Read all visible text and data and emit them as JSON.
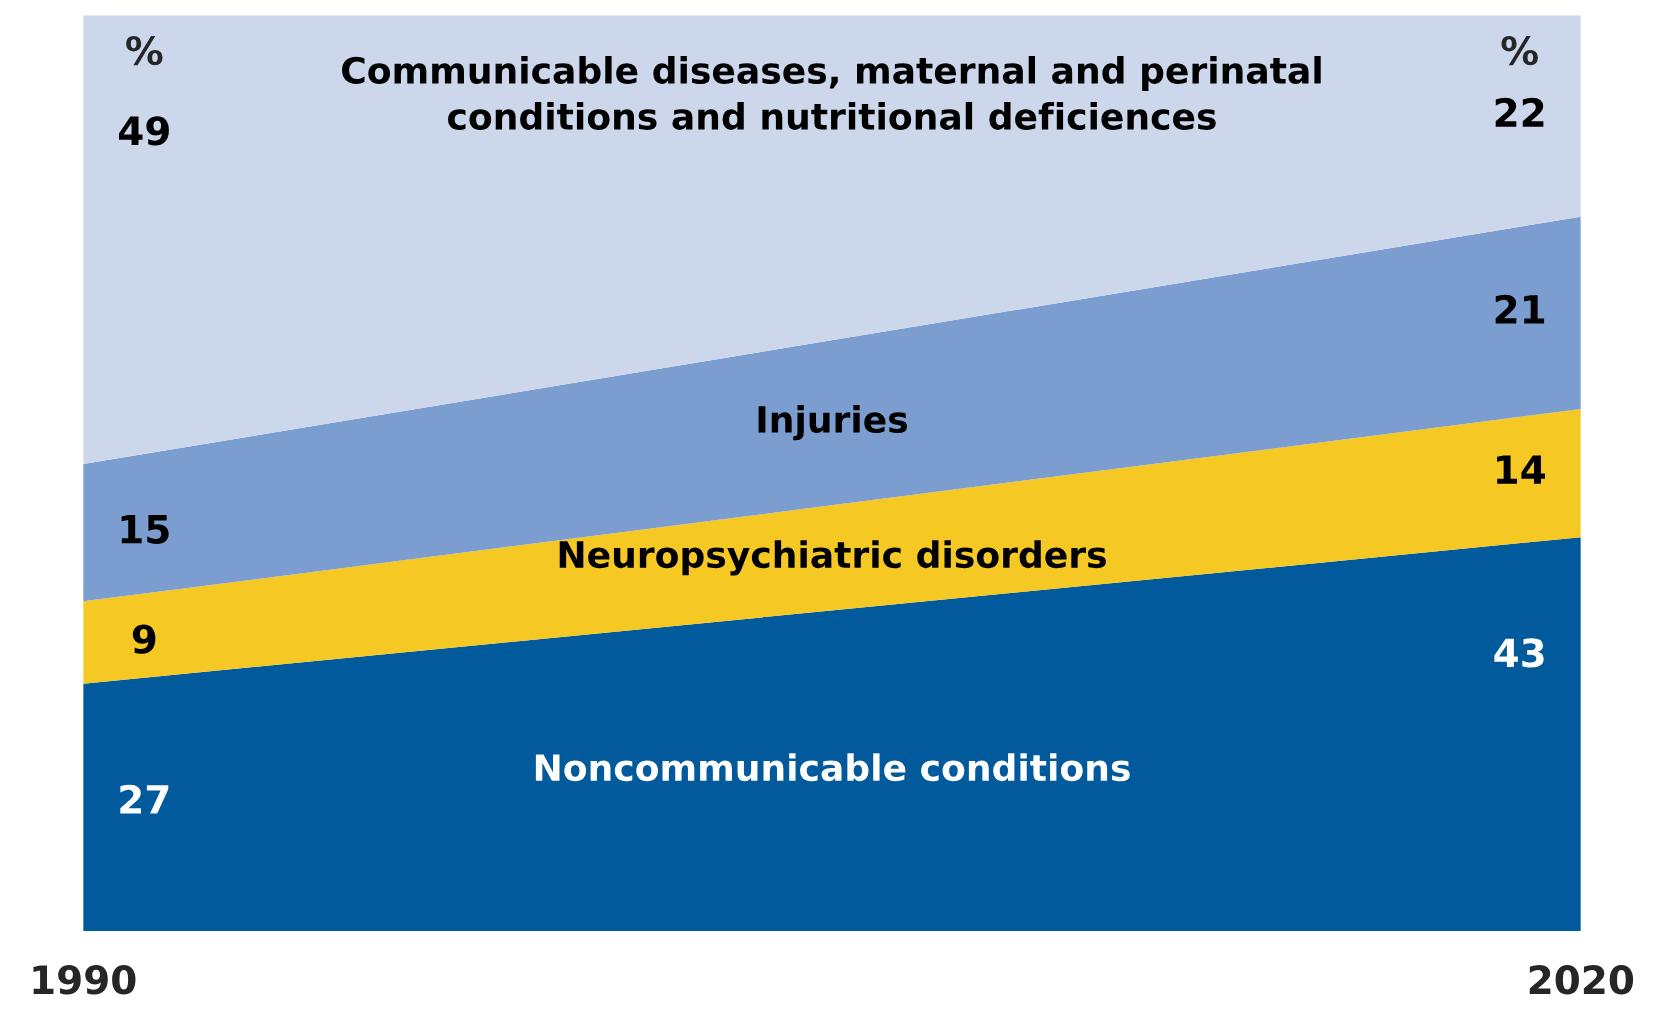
{
  "chart_data": {
    "type": "area",
    "stacked": true,
    "categories": [
      "1990",
      "2020"
    ],
    "tick_labels": "x",
    "data_labels": true,
    "legend": false,
    "grid": false,
    "annotations": [
      "%",
      "%"
    ],
    "series": [
      {
        "name": "Noncommunicable conditions",
        "color": "#005a9c",
        "values": [
          27,
          43
        ]
      },
      {
        "name": "Neuropsychiatric disorders",
        "color": "#f5c823",
        "values": [
          9,
          14
        ]
      },
      {
        "name": "Injuries",
        "color": "#7b9dd0",
        "values": [
          15,
          21
        ]
      },
      {
        "name": "Communicable diseases, maternal and perinatal conditions and nutritional deficiences",
        "color": "#cdd7ec",
        "values": [
          49,
          22
        ]
      }
    ]
  }
}
